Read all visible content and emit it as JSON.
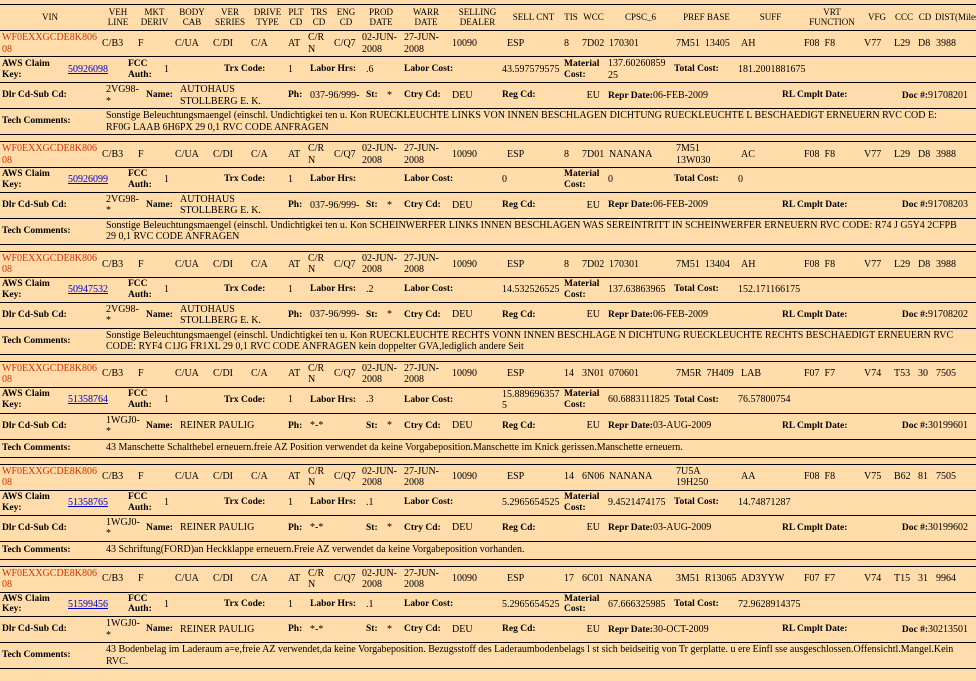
{
  "colors": {
    "background": "#ffdcaa",
    "vin": "#cc3300",
    "link": "#0000cc",
    "line": "#000000"
  },
  "header": {
    "columns": [
      "VIN",
      "VEH LINE",
      "MKT DERIV",
      "BODY CAB",
      "VER SERIES",
      "DRIVE TYPE",
      "PLT CD",
      "TRS CD",
      "ENG CD",
      "PROD DATE",
      "WARR DATE",
      "SELLING DEALER",
      "SELL CNT",
      "TIS",
      "WCC",
      "CPSC_6",
      "PREF BASE",
      "SUFF",
      "VRT FUNCTION",
      "VFG",
      "CCC",
      "CD",
      "DIST(Miles)"
    ]
  },
  "labels": {
    "aws_claim_key": "AWS Claim Key:",
    "fcc_auth": "FCC Auth:",
    "trx_code": "Trx Code:",
    "labor_hrs": "Labor Hrs:",
    "labor_cost": "Labor Cost:",
    "material_cost": "Material Cost:",
    "total_cost": "Total Cost:",
    "dlr_cd_sub_cd": "Dlr Cd-Sub Cd:",
    "name": "Name:",
    "ph": "Ph:",
    "st": "St:",
    "ctry_cd": "Ctry Cd:",
    "reg_cd": "Reg Cd:",
    "repr_date": "Repr Date:",
    "rl_cmplt_date": "RL Cmplt Date:",
    "doc": "Doc #:",
    "tech_comments": "Tech Comments:"
  },
  "records": [
    {
      "vin": "WF0EXXGCDE8K80608",
      "veh_line": "C/B3",
      "mkt_deriv": "F",
      "body_cab": "C/UA",
      "ver_series": "C/DI",
      "drive_type": "C/A",
      "plt_cd": "AT",
      "trs_cd": "C/RN",
      "eng_cd": "C/Q7",
      "prod_date": "02-JUN-2008",
      "warr_date": "27-JUN-2008",
      "selling_dealer": "10090",
      "sell_cnt": "ESP",
      "tis": "8",
      "wcc": "7D02",
      "cpsc_6": "170301",
      "pref_base": "7M51  13405",
      "suff": "AH",
      "vrt_function": "F08  F8",
      "vfg": "V77",
      "ccc": "L29",
      "cd": "D8",
      "dist": "3988",
      "claim_key": "50926098",
      "fcc_auth": "1",
      "trx_code": "1",
      "labor_hrs": ".6",
      "labor_cost": "43.597579575",
      "material_cost": "137.6026085925",
      "total_cost": "181.2001881675",
      "dlr_cd_sub_cd": "2VG98-*",
      "dealer_name": "AUTOHAUS STOLLBERG E. K.",
      "ph": "037-96/999-",
      "st": "*",
      "ctry_cd": "DEU",
      "reg_cd": "EU",
      "repr_date": "06-FEB-2009",
      "doc": "91708201",
      "tech_comments": "Sonstige Beleuchtungsmaengel (einschl. Undichtigkei ten u. Kon RUECKLEUCHTE LINKS VON INNEN BESCHLAGEN DICHTUNG RUECKLEUCHTE L BESCHAEDIGT ERNEUERN RVC COD E: RF0G LAAB 6H6PX 29 0,1 RVC CODE ANFRAGEN"
    },
    {
      "vin": "WF0EXXGCDE8K80608",
      "veh_line": "C/B3",
      "mkt_deriv": "F",
      "body_cab": "C/UA",
      "ver_series": "C/DI",
      "drive_type": "C/A",
      "plt_cd": "AT",
      "trs_cd": "C/RN",
      "eng_cd": "C/Q7",
      "prod_date": "02-JUN-2008",
      "warr_date": "27-JUN-2008",
      "selling_dealer": "10090",
      "sell_cnt": "ESP",
      "tis": "8",
      "wcc": "7D01",
      "cpsc_6": "NANANA",
      "pref_base": "7M51  13W030",
      "suff": "AC",
      "vrt_function": "F08  F8",
      "vfg": "V77",
      "ccc": "L29",
      "cd": "D8",
      "dist": "3988",
      "claim_key": "50926099",
      "fcc_auth": "1",
      "trx_code": "1",
      "labor_hrs": "",
      "labor_cost": "0",
      "material_cost": "0",
      "total_cost": "0",
      "dlr_cd_sub_cd": "2VG98-*",
      "dealer_name": "AUTOHAUS STOLLBERG E. K.",
      "ph": "037-96/999-",
      "st": "*",
      "ctry_cd": "DEU",
      "reg_cd": "EU",
      "repr_date": "06-FEB-2009",
      "doc": "91708203",
      "tech_comments": "Sonstige Beleuchtungsmaengel (einschl. Undichtigkei ten u. Kon SCHEINWERFER LINKS INNEN BESCHLAGEN WAS SEREINTRITT IN SCHEINWERFER ERNEUERN RVC CODE: R74 J G5Y4 2CFPB 29 0,1 RVC CODE ANFRAGEN"
    },
    {
      "vin": "WF0EXXGCDE8K80608",
      "veh_line": "C/B3",
      "mkt_deriv": "F",
      "body_cab": "C/UA",
      "ver_series": "C/DI",
      "drive_type": "C/A",
      "plt_cd": "AT",
      "trs_cd": "C/RN",
      "eng_cd": "C/Q7",
      "prod_date": "02-JUN-2008",
      "warr_date": "27-JUN-2008",
      "selling_dealer": "10090",
      "sell_cnt": "ESP",
      "tis": "8",
      "wcc": "7D02",
      "cpsc_6": "170301",
      "pref_base": "7M51  13404",
      "suff": "AH",
      "vrt_function": "F08  F8",
      "vfg": "V77",
      "ccc": "L29",
      "cd": "D8",
      "dist": "3988",
      "claim_key": "50947532",
      "fcc_auth": "1",
      "trx_code": "1",
      "labor_hrs": ".2",
      "labor_cost": "14.532526525",
      "material_cost": "137.63863965",
      "total_cost": "152.171166175",
      "dlr_cd_sub_cd": "2VG98-*",
      "dealer_name": "AUTOHAUS STOLLBERG E. K.",
      "ph": "037-96/999-",
      "st": "*",
      "ctry_cd": "DEU",
      "reg_cd": "EU",
      "repr_date": "06-FEB-2009",
      "doc": "91708202",
      "tech_comments": "Sonstige Beleuchtungsmaengel (einschl. Undichtigkei ten u. Kon RUECKLEUCHTE RECHTS VONN INNEN BESCHLAGE N DICHTUNG RUECKLEUCHTE RECHTS BESCHAEDIGT ERNEUERN RVC CODE: RYF4 C1JG FR1XL 29 0,1 RVC CODE ANFRAGEN kein doppelter GVA,lediglich andere Seit"
    },
    {
      "vin": "WF0EXXGCDE8K80608",
      "veh_line": "C/B3",
      "mkt_deriv": "F",
      "body_cab": "C/UA",
      "ver_series": "C/DI",
      "drive_type": "C/A",
      "plt_cd": "AT",
      "trs_cd": "C/RN",
      "eng_cd": "C/Q7",
      "prod_date": "02-JUN-2008",
      "warr_date": "27-JUN-2008",
      "selling_dealer": "10090",
      "sell_cnt": "ESP",
      "tis": "14",
      "wcc": "3N01",
      "cpsc_6": "070601",
      "pref_base": "7M5R  7H409",
      "suff": "LAB",
      "vrt_function": "F07  F7",
      "vfg": "V74",
      "ccc": "T53",
      "cd": "30",
      "dist": "7505",
      "claim_key": "51358764",
      "fcc_auth": "1",
      "trx_code": "1",
      "labor_hrs": ".3",
      "labor_cost": "15.8896963575",
      "material_cost": "60.6883111825",
      "total_cost": "76.57800754",
      "dlr_cd_sub_cd": "1WGJ0-*",
      "dealer_name": "REINER PAULIG",
      "ph": "*-*",
      "st": "*",
      "ctry_cd": "DEU",
      "reg_cd": "EU",
      "repr_date": "03-AUG-2009",
      "doc": "30199601",
      "tech_comments": "43 Manschette Schalthebel erneuern.freie AZ Position verwendet da keine Vorgabeposition.Manschette im Knick gerissen.Manschette erneuern."
    },
    {
      "vin": "WF0EXXGCDE8K80608",
      "veh_line": "C/B3",
      "mkt_deriv": "F",
      "body_cab": "C/UA",
      "ver_series": "C/DI",
      "drive_type": "C/A",
      "plt_cd": "AT",
      "trs_cd": "C/RN",
      "eng_cd": "C/Q7",
      "prod_date": "02-JUN-2008",
      "warr_date": "27-JUN-2008",
      "selling_dealer": "10090",
      "sell_cnt": "ESP",
      "tis": "14",
      "wcc": "6N06",
      "cpsc_6": "NANANA",
      "pref_base": "7U5A  19H250",
      "suff": "AA",
      "vrt_function": "F08  F8",
      "vfg": "V75",
      "ccc": "B62",
      "cd": "81",
      "dist": "7505",
      "claim_key": "51358765",
      "fcc_auth": "1",
      "trx_code": "1",
      "labor_hrs": ".1",
      "labor_cost": "5.2965654525",
      "material_cost": "9.4521474175",
      "total_cost": "14.74871287",
      "dlr_cd_sub_cd": "1WGJ0-*",
      "dealer_name": "REINER PAULIG",
      "ph": "*-*",
      "st": "*",
      "ctry_cd": "DEU",
      "reg_cd": "EU",
      "repr_date": "03-AUG-2009",
      "doc": "30199602",
      "tech_comments": "43 Schriftung(FORD)an Heckklappe erneuern.Freie AZ verwendet da keine Vorgabeposition vorhanden."
    },
    {
      "vin": "WF0EXXGCDE8K80608",
      "veh_line": "C/B3",
      "mkt_deriv": "F",
      "body_cab": "C/UA",
      "ver_series": "C/DI",
      "drive_type": "C/A",
      "plt_cd": "AT",
      "trs_cd": "C/RN",
      "eng_cd": "C/Q7",
      "prod_date": "02-JUN-2008",
      "warr_date": "27-JUN-2008",
      "selling_dealer": "10090",
      "sell_cnt": "ESP",
      "tis": "17",
      "wcc": "6C01",
      "cpsc_6": "NANANA",
      "pref_base": "3M51  R13065",
      "suff": "AD3YYW",
      "vrt_function": "F07  F7",
      "vfg": "V74",
      "ccc": "T15",
      "cd": "31",
      "dist": "9964",
      "claim_key": "51599456",
      "fcc_auth": "1",
      "trx_code": "1",
      "labor_hrs": ".1",
      "labor_cost": "5.2965654525",
      "material_cost": "67.666325985",
      "total_cost": "72.9628914375",
      "dlr_cd_sub_cd": "1WGJ0-*",
      "dealer_name": "REINER PAULIG",
      "ph": "*-*",
      "st": "*",
      "ctry_cd": "DEU",
      "reg_cd": "EU",
      "repr_date": "30-OCT-2009",
      "doc": "30213501",
      "tech_comments": "43 Bodenbelag im Laderaum a=e,freie AZ verwendet,da keine Vorgabeposition. Bezugsstoff des Laderaumbodenbelags l st sich beidseitig von Tr gerplatte. u ere Einfl sse ausgeschlossen.Offensichtl.Mangel.Kein RVC."
    }
  ]
}
